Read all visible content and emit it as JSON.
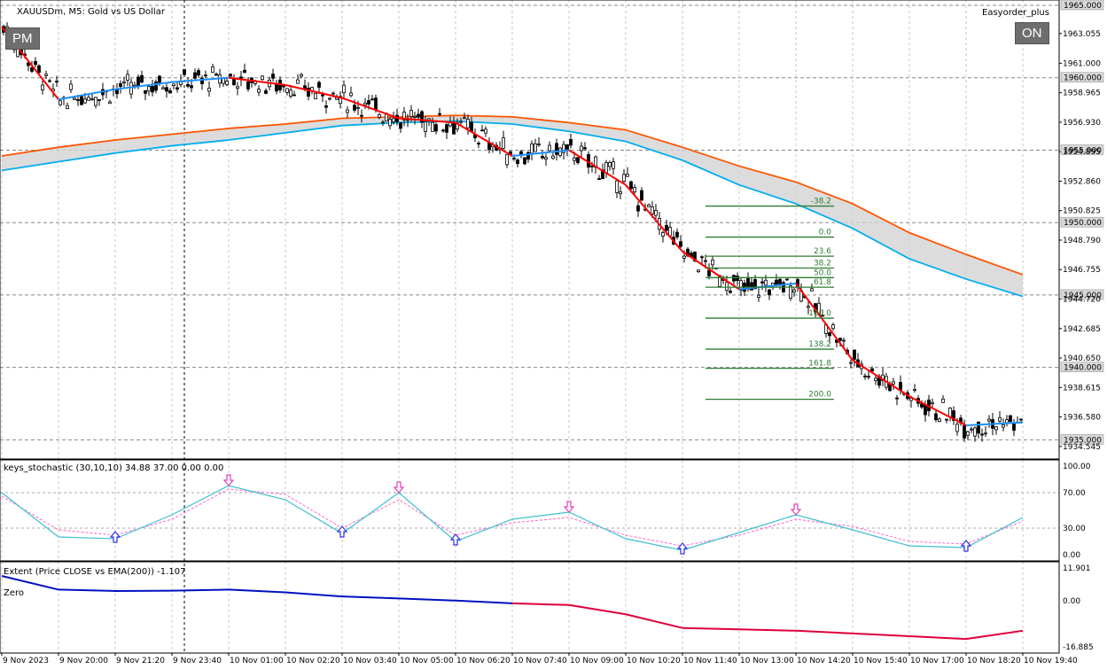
{
  "header": {
    "symbol_title": "XAUUSDm, M5:  Gold vs US Dollar",
    "ea_name": "Easyorder_plus"
  },
  "buttons": {
    "pm": "PM",
    "on": "ON"
  },
  "colors": {
    "bull_candle": "#ffffff",
    "bear_candle": "#000000",
    "zigzag_up": "#1e90ff",
    "zigzag_down": "#ff0000",
    "ema_fast": "#00aeef",
    "ema_slow": "#ff5500",
    "band": "#d3d3d3",
    "fibo": "#2e7d32",
    "stoch_main": "#40c0d0",
    "stoch_signal": "#ff66cc",
    "extent_up": "#0010c0",
    "extent_down": "#e0003c"
  },
  "price_axis": {
    "ticks": [
      "1963.055",
      "1961.000",
      "1958.965",
      "1956.930",
      "1952.860",
      "1950.825",
      "1948.790",
      "1946.755",
      "1942.685",
      "1940.650",
      "1938.615",
      "1936.580",
      "1934.545"
    ],
    "level_labels": [
      "1965.000",
      "1960.000",
      "1955.000",
      "1950.000",
      "1945.000",
      "1940.000",
      "1935.000"
    ],
    "partial_ticks": [
      "1954.895",
      "1944.720"
    ]
  },
  "time_axis": {
    "labels": [
      "9 Nov 2023",
      "9 Nov 20:00",
      "9 Nov 21:20",
      "9 Nov 23:40",
      "10 Nov 01:00",
      "10 Nov 02:20",
      "10 Nov 03:40",
      "10 Nov 05:00",
      "10 Nov 06:20",
      "10 Nov 07:40",
      "10 Nov 09:00",
      "10 Nov 10:20",
      "10 Nov 11:40",
      "10 Nov 13:00",
      "10 Nov 14:20",
      "10 Nov 15:40",
      "10 Nov 17:00",
      "10 Nov 18:20",
      "10 Nov 19:40"
    ]
  },
  "fibonacci": {
    "levels": [
      "-38.2",
      "0.0",
      "23.6",
      "38.2",
      "50.0",
      "61.8",
      "100.0",
      "138.2",
      "161.8",
      "200.0"
    ]
  },
  "stochastic": {
    "title": "keys_stochastic (30,10,10) 34.88 37.00 0.00 0.00",
    "ticks": [
      "100.00",
      "70.00",
      "30.00",
      "0.00"
    ]
  },
  "extent": {
    "title": "Extent (Price CLOSE vs EMA(200)) -1.107",
    "zero_label": "Zero",
    "ticks": [
      "11.901",
      "0.00",
      "-16.885"
    ]
  },
  "chart_data": [
    {
      "type": "line",
      "title": "XAUUSDm, M5:  Gold vs US Dollar",
      "x": [
        "9 Nov 2023",
        "9 Nov 20:00",
        "9 Nov 21:20",
        "9 Nov 23:40",
        "10 Nov 01:00",
        "10 Nov 02:20",
        "10 Nov 03:40",
        "10 Nov 05:00",
        "10 Nov 06:20",
        "10 Nov 07:40",
        "10 Nov 09:00",
        "10 Nov 10:20",
        "10 Nov 11:40",
        "10 Nov 13:00",
        "10 Nov 14:20",
        "10 Nov 15:40",
        "10 Nov 17:00",
        "10 Nov 18:20",
        "10 Nov 19:40"
      ],
      "ylim": [
        1933.8,
        1965.0
      ],
      "series": [
        {
          "values": [
            1963.5,
            1958.5,
            1959.2,
            1959.7,
            1960.0,
            1959.5,
            1958.6,
            1957.2,
            1956.9,
            1954.6,
            1955.0,
            1952.6,
            1948.0,
            1945.4,
            1945.8,
            1940.5,
            1938.0,
            1936.0,
            1936.2
          ]
        },
        {
          "values": [
            1954.6,
            1955.2,
            1955.7,
            1956.1,
            1956.5,
            1956.8,
            1957.2,
            1957.3,
            1957.4,
            1957.3,
            1956.9,
            1956.4,
            1955.2,
            1953.9,
            1952.8,
            1951.3,
            1949.3,
            1947.8,
            1946.4
          ]
        },
        {
          "values": [
            1953.6,
            1954.2,
            1954.8,
            1955.3,
            1955.7,
            1956.2,
            1956.7,
            1956.9,
            1957.0,
            1956.8,
            1956.3,
            1955.6,
            1954.3,
            1952.6,
            1951.3,
            1949.6,
            1947.5,
            1946.1,
            1944.9
          ]
        }
      ]
    },
    {
      "type": "line",
      "title": "keys_stochastic (30,10,10) 34.88 37.00 0.00 0.00",
      "x": [
        "9 Nov 2023",
        "9 Nov 20:00",
        "9 Nov 21:20",
        "9 Nov 23:40",
        "10 Nov 01:00",
        "10 Nov 02:20",
        "10 Nov 03:40",
        "10 Nov 05:00",
        "10 Nov 06:20",
        "10 Nov 07:40",
        "10 Nov 09:00",
        "10 Nov 10:20",
        "10 Nov 11:40",
        "10 Nov 13:00",
        "10 Nov 14:20",
        "10 Nov 15:40",
        "10 Nov 17:00",
        "10 Nov 18:20",
        "10 Nov 19:40"
      ],
      "ylim": [
        0,
        100
      ],
      "series": [
        {
          "values": [
            70,
            20,
            18,
            45,
            78,
            62,
            24,
            70,
            15,
            40,
            48,
            18,
            5,
            25,
            45,
            28,
            10,
            8,
            42
          ]
        },
        {
          "values": [
            66,
            28,
            22,
            40,
            74,
            68,
            30,
            62,
            22,
            36,
            42,
            22,
            10,
            22,
            40,
            32,
            15,
            12,
            38
          ]
        }
      ]
    },
    {
      "type": "line",
      "title": "Extent (Price CLOSE vs EMA(200)) -1.107",
      "x": [
        "9 Nov 2023",
        "9 Nov 20:00",
        "9 Nov 21:20",
        "9 Nov 23:40",
        "10 Nov 01:00",
        "10 Nov 02:20",
        "10 Nov 03:40",
        "10 Nov 05:00",
        "10 Nov 06:20",
        "10 Nov 07:40",
        "10 Nov 09:00",
        "10 Nov 10:20",
        "10 Nov 11:40",
        "10 Nov 13:00",
        "10 Nov 14:20",
        "10 Nov 15:40",
        "10 Nov 17:00",
        "10 Nov 18:20",
        "10 Nov 19:40"
      ],
      "ylim": [
        -16.885,
        11.901
      ],
      "series": [
        {
          "values": [
            9,
            4,
            3.5,
            3.6,
            4,
            3,
            1.5,
            0.8,
            0,
            -1,
            -1.6,
            -5,
            -10,
            -10.5,
            -11,
            -12,
            -13,
            -14,
            -11
          ]
        }
      ]
    }
  ]
}
